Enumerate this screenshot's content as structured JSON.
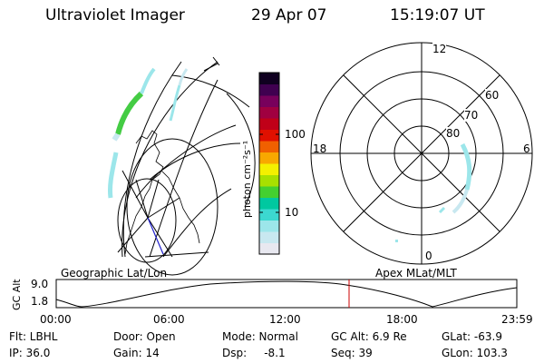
{
  "header": {
    "instrument": "Ultraviolet Imager",
    "date": "29 Apr 07",
    "time": "15:19:07 UT"
  },
  "colorbar": {
    "unit_label": "photon cm⁻²s⁻¹",
    "ticks": [
      "100",
      "10"
    ],
    "colors": [
      "#e8e8f0",
      "#c8e8f0",
      "#9ce6ea",
      "#3cd8d0",
      "#00c8a0",
      "#44d030",
      "#a8e000",
      "#f4f000",
      "#f8a800",
      "#f06000",
      "#e01000",
      "#c00018",
      "#a00040",
      "#78005c",
      "#400050",
      "#100020"
    ]
  },
  "polar_plot": {
    "mlt_labels": {
      "top": "12",
      "left": "18",
      "right": "6",
      "bottom": "0"
    },
    "lat_labels": [
      "60",
      "70",
      "80"
    ]
  },
  "geo_plot": {},
  "altitude_panel": {
    "left_caption": "Geographic Lat/Lon",
    "right_caption": "Apex MLat/MLT",
    "y_axis_label": "GC Alt",
    "y_ticks": [
      "9.0",
      "1.8"
    ],
    "x_ticks": [
      "00:00",
      "06:00",
      "12:00",
      "18:00",
      "23:59"
    ]
  },
  "status": {
    "filter": "Flt: LBHL",
    "ip": "IP: 36.0",
    "door": "Door: Open",
    "gain": "Gain: 14",
    "mode": "Mode: Normal",
    "dsp": "Dsp:     -8.1",
    "gc_alt": "GC Alt: 6.9 Re",
    "seq": "Seq: 39",
    "glat": "GLat: -63.9",
    "glon": "GLon: 103.3"
  },
  "colors": {
    "marker": "#cc0000",
    "aurora_green": "#44cc44",
    "aurora_cyan": "#9ce6ea"
  }
}
